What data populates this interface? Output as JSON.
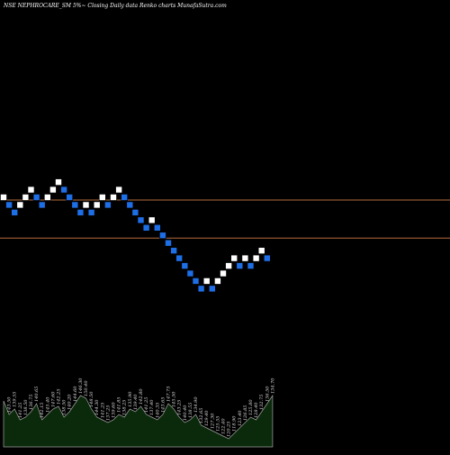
{
  "chart_data": {
    "type": "renko",
    "title": "NSE NEPHROCARE_SM 5%~   Closing Daily data  Renko  charts MunafaSutra.com",
    "colors": {
      "background": "#000000",
      "up_brick": "#ffffff",
      "down_brick": "#1e6ee6",
      "reference_line": "#b36b3a",
      "volume_fill": "#0b2a0b",
      "volume_stroke": "#a0a0a0"
    },
    "bricks": [
      {
        "level": 0,
        "dir": "up"
      },
      {
        "level": -1,
        "dir": "down"
      },
      {
        "level": -2,
        "dir": "down"
      },
      {
        "level": -1,
        "dir": "up"
      },
      {
        "level": 0,
        "dir": "up"
      },
      {
        "level": 1,
        "dir": "up"
      },
      {
        "level": 0,
        "dir": "down"
      },
      {
        "level": -1,
        "dir": "down"
      },
      {
        "level": 0,
        "dir": "up"
      },
      {
        "level": 1,
        "dir": "up"
      },
      {
        "level": 2,
        "dir": "up"
      },
      {
        "level": 1,
        "dir": "down"
      },
      {
        "level": 0,
        "dir": "down"
      },
      {
        "level": -1,
        "dir": "down"
      },
      {
        "level": -2,
        "dir": "down"
      },
      {
        "level": -1,
        "dir": "up"
      },
      {
        "level": -2,
        "dir": "down"
      },
      {
        "level": -1,
        "dir": "up"
      },
      {
        "level": 0,
        "dir": "up"
      },
      {
        "level": -1,
        "dir": "down"
      },
      {
        "level": 0,
        "dir": "up"
      },
      {
        "level": 1,
        "dir": "up"
      },
      {
        "level": 0,
        "dir": "down"
      },
      {
        "level": -1,
        "dir": "down"
      },
      {
        "level": -2,
        "dir": "down"
      },
      {
        "level": -3,
        "dir": "down"
      },
      {
        "level": -4,
        "dir": "down"
      },
      {
        "level": -3,
        "dir": "up"
      },
      {
        "level": -4,
        "dir": "down"
      },
      {
        "level": -5,
        "dir": "down"
      },
      {
        "level": -6,
        "dir": "down"
      },
      {
        "level": -7,
        "dir": "down"
      },
      {
        "level": -8,
        "dir": "down"
      },
      {
        "level": -9,
        "dir": "down"
      },
      {
        "level": -10,
        "dir": "down"
      },
      {
        "level": -11,
        "dir": "down"
      },
      {
        "level": -12,
        "dir": "down"
      },
      {
        "level": -11,
        "dir": "up"
      },
      {
        "level": -12,
        "dir": "down"
      },
      {
        "level": -11,
        "dir": "up"
      },
      {
        "level": -10,
        "dir": "up"
      },
      {
        "level": -9,
        "dir": "up"
      },
      {
        "level": -8,
        "dir": "up"
      },
      {
        "level": -9,
        "dir": "down"
      },
      {
        "level": -8,
        "dir": "up"
      },
      {
        "level": -9,
        "dir": "down"
      },
      {
        "level": -8,
        "dir": "up"
      },
      {
        "level": -7,
        "dir": "up"
      },
      {
        "level": -8,
        "dir": "down"
      }
    ],
    "reference_lines": [
      {
        "level": 0
      },
      {
        "level": -5
      }
    ],
    "volume": [
      {
        "value": 0.85,
        "label": ""
      },
      {
        "value": 0.6,
        "label": "143.50"
      },
      {
        "value": 0.7,
        "label": "139.55"
      },
      {
        "value": 0.5,
        "label": "141.25"
      },
      {
        "value": 0.55,
        "label": "138.50"
      },
      {
        "value": 0.65,
        "label": "136.75"
      },
      {
        "value": 0.8,
        "label": "140.65"
      },
      {
        "value": 0.5,
        "label": "142.15"
      },
      {
        "value": 0.6,
        "label": "145.40"
      },
      {
        "value": 0.7,
        "label": "147.60"
      },
      {
        "value": 0.75,
        "label": "142.25"
      },
      {
        "value": 0.55,
        "label": "138.50"
      },
      {
        "value": 0.65,
        "label": "140.20"
      },
      {
        "value": 0.8,
        "label": "144.60"
      },
      {
        "value": 0.95,
        "label": "146.30"
      },
      {
        "value": 0.9,
        "label": "150.40"
      },
      {
        "value": 0.7,
        "label": "148.50"
      },
      {
        "value": 0.55,
        "label": "144.30"
      },
      {
        "value": 0.5,
        "label": "141.25"
      },
      {
        "value": 0.45,
        "label": "137.25"
      },
      {
        "value": 0.5,
        "label": "139.60"
      },
      {
        "value": 0.6,
        "label": "141.85"
      },
      {
        "value": 0.55,
        "label": "138.25"
      },
      {
        "value": 0.7,
        "label": "135.90"
      },
      {
        "value": 0.65,
        "label": "139.40"
      },
      {
        "value": 0.75,
        "label": "142.80"
      },
      {
        "value": 0.6,
        "label": "141.25"
      },
      {
        "value": 0.55,
        "label": "137.40"
      },
      {
        "value": 0.5,
        "label": "140.35"
      },
      {
        "value": 0.6,
        "label": "143.65"
      },
      {
        "value": 0.8,
        "label": "147.75"
      },
      {
        "value": 0.7,
        "label": "145.50"
      },
      {
        "value": 0.55,
        "label": "143.25"
      },
      {
        "value": 0.45,
        "label": "140.40"
      },
      {
        "value": 0.5,
        "label": "138.55"
      },
      {
        "value": 0.6,
        "label": "134.90"
      },
      {
        "value": 0.4,
        "label": "132.65"
      },
      {
        "value": 0.35,
        "label": "129.40"
      },
      {
        "value": 0.3,
        "label": "127.30"
      },
      {
        "value": 0.25,
        "label": "125.55"
      },
      {
        "value": 0.2,
        "label": "122.40"
      },
      {
        "value": 0.15,
        "label": "120.25"
      },
      {
        "value": 0.25,
        "label": "118.90"
      },
      {
        "value": 0.35,
        "label": "123.40"
      },
      {
        "value": 0.45,
        "label": "126.85"
      },
      {
        "value": 0.55,
        "label": "125.80"
      },
      {
        "value": 0.5,
        "label": "128.40"
      },
      {
        "value": 0.65,
        "label": "132.75"
      },
      {
        "value": 0.8,
        "label": "136.50"
      },
      {
        "value": 0.95,
        "label": "134.70"
      }
    ]
  }
}
